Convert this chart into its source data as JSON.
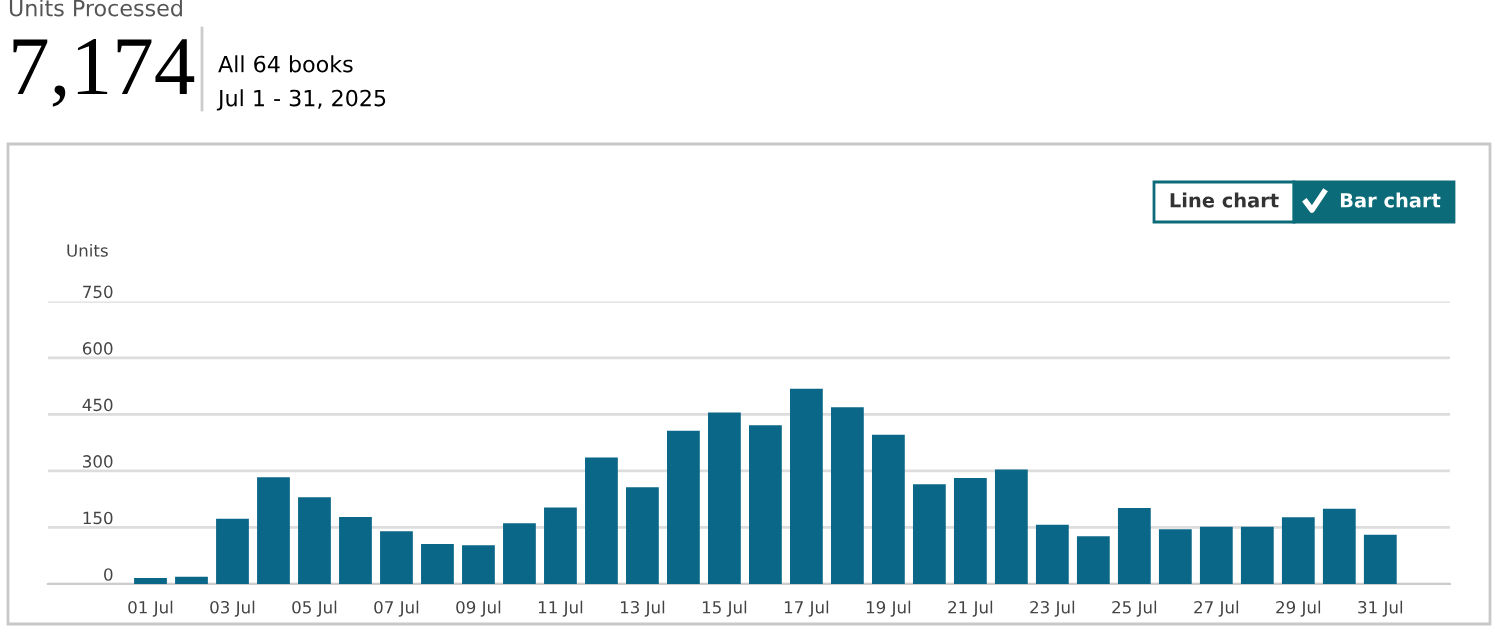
{
  "chart_data": {
    "type": "bar",
    "title": "Units Processed",
    "annotations": [
      "7,174",
      "All 64 books",
      "Jul 1 - 31, 2025",
      "Line chart",
      "Bar chart"
    ],
    "ylabel": "Units",
    "categories": [
      "01 Jul",
      null,
      "03 Jul",
      null,
      "05 Jul",
      null,
      "07 Jul",
      null,
      "09 Jul",
      null,
      "11 Jul",
      null,
      "13 Jul",
      null,
      "15 Jul",
      null,
      "17 Jul",
      null,
      "19 Jul",
      null,
      "21 Jul",
      null,
      "23 Jul",
      null,
      "25 Jul",
      null,
      "27 Jul",
      null,
      "29 Jul",
      null,
      "31 Jul"
    ],
    "values": [
      16,
      19,
      173,
      283,
      230,
      178,
      140,
      106,
      103,
      161,
      203,
      336,
      257,
      407,
      455,
      421,
      518,
      469,
      396,
      265,
      281,
      304,
      157,
      127,
      202,
      145,
      152,
      152,
      177,
      200,
      131
    ],
    "color": "#0b6788",
    "ylim": [
      0,
      750
    ],
    "yticks": [
      0,
      150,
      300,
      450,
      600,
      750
    ],
    "grid": "y",
    "legend": false
  }
}
